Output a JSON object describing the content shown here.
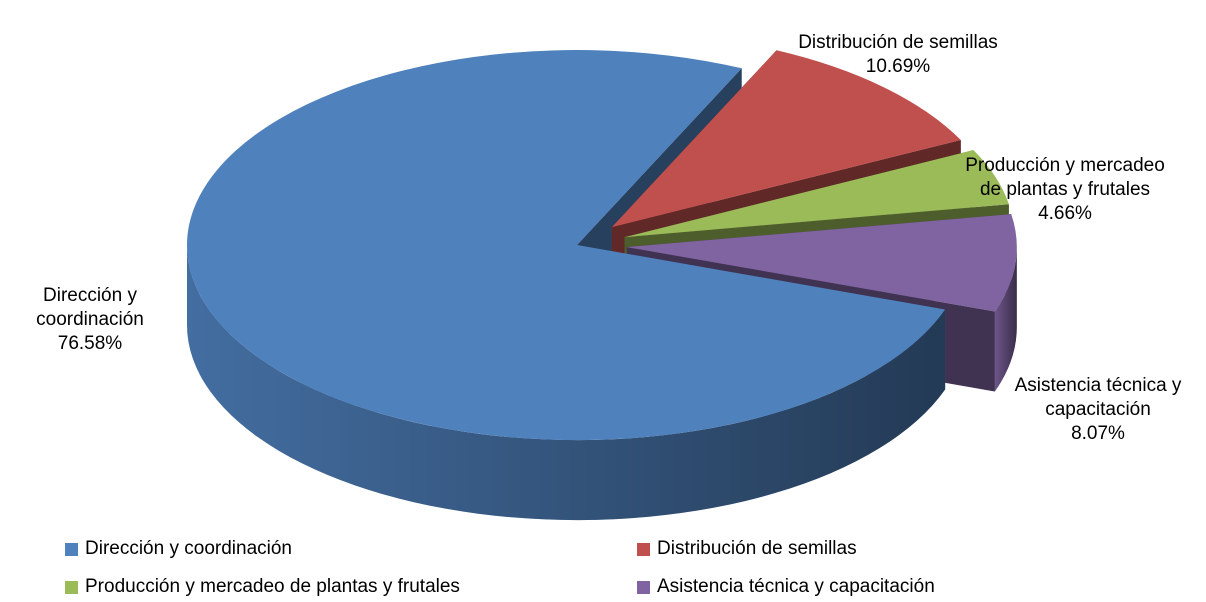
{
  "chart_data": {
    "type": "pie3d",
    "categories": [
      "Dirección y coordinación",
      "Distribución de semillas",
      "Producción y mercadeo de plantas y frutales",
      "Asistencia técnica y capacitación"
    ],
    "values": [
      76.58,
      10.69,
      4.66,
      8.07
    ],
    "value_labels": [
      "76.58%",
      "10.69%",
      "4.66%",
      "8.07%"
    ],
    "colors": [
      "#4f81bd",
      "#c0504d",
      "#9bbb59",
      "#8064a2"
    ],
    "legend": "bottom"
  }
}
